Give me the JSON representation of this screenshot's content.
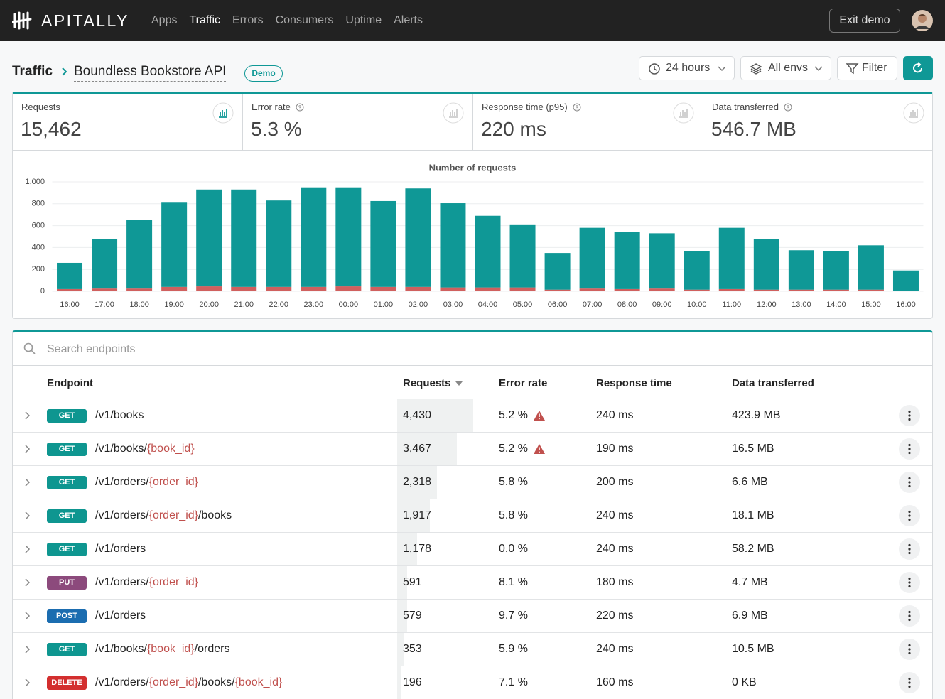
{
  "nav": {
    "logo": "APITALLY",
    "items": [
      {
        "label": "Apps"
      },
      {
        "label": "Traffic",
        "active": true
      },
      {
        "label": "Errors"
      },
      {
        "label": "Consumers"
      },
      {
        "label": "Uptime"
      },
      {
        "label": "Alerts"
      }
    ],
    "exit_button": "Exit demo"
  },
  "breadcrumb": {
    "section": "Traffic",
    "app": "Boundless Bookstore API",
    "badge": "Demo"
  },
  "controls": {
    "period": "24 hours",
    "envs": "All envs",
    "filter": "Filter"
  },
  "stats": [
    {
      "label": "Requests",
      "value": "15,462",
      "info": false,
      "active": true
    },
    {
      "label": "Error rate",
      "value": "5.3 %",
      "info": true,
      "active": false
    },
    {
      "label": "Response time (p95)",
      "value": "220 ms",
      "info": true,
      "active": false
    },
    {
      "label": "Data transferred",
      "value": "546.7 MB",
      "info": true,
      "active": false
    }
  ],
  "chart_data": {
    "type": "bar",
    "stacked": true,
    "title": "Number of requests",
    "categories": [
      "16:00",
      "17:00",
      "18:00",
      "19:00",
      "20:00",
      "21:00",
      "22:00",
      "23:00",
      "00:00",
      "01:00",
      "02:00",
      "03:00",
      "04:00",
      "05:00",
      "06:00",
      "07:00",
      "08:00",
      "09:00",
      "10:00",
      "11:00",
      "12:00",
      "13:00",
      "14:00",
      "15:00",
      "16:00"
    ],
    "series": [
      {
        "color": "#d0605e",
        "values": [
          20,
          25,
          25,
          40,
          45,
          40,
          40,
          40,
          45,
          40,
          40,
          35,
          35,
          35,
          15,
          25,
          20,
          25,
          15,
          20,
          15,
          15,
          15,
          15,
          5
        ]
      },
      {
        "color": "#0f9896",
        "values": [
          240,
          455,
          625,
          770,
          885,
          890,
          790,
          910,
          905,
          785,
          900,
          770,
          655,
          570,
          335,
          555,
          525,
          505,
          355,
          560,
          465,
          360,
          355,
          405,
          185
        ]
      }
    ],
    "ylim": [
      0,
      1000
    ],
    "yticks": [
      0,
      200,
      400,
      600,
      800,
      {
        "value": 1000,
        "label": "1,000"
      }
    ],
    "grid": true
  },
  "table": {
    "search_placeholder": "Search endpoints",
    "columns": [
      "Endpoint",
      "Requests",
      "Error rate",
      "Response time",
      "Data transferred"
    ],
    "sort_column": 1,
    "method_colors": {
      "GET": "#0e9690",
      "PUT": "#8c4a7c",
      "POST": "#1b6db0",
      "DELETE": "#d32f2f"
    },
    "rows": [
      {
        "method": "GET",
        "path": [
          {
            "text": "/v1/books"
          }
        ],
        "requests": {
          "value": 4430,
          "label": "4,430"
        },
        "error_rate": "5.2 %",
        "warning": true,
        "response_time": "240 ms",
        "data_transferred": "423.9 MB"
      },
      {
        "method": "GET",
        "path": [
          {
            "text": "/v1/books/"
          },
          {
            "text": "{book_id}",
            "param": true
          }
        ],
        "requests": {
          "value": 3467,
          "label": "3,467"
        },
        "error_rate": "5.2 %",
        "warning": true,
        "response_time": "190 ms",
        "data_transferred": "16.5 MB"
      },
      {
        "method": "GET",
        "path": [
          {
            "text": "/v1/orders/"
          },
          {
            "text": "{order_id}",
            "param": true
          }
        ],
        "requests": {
          "value": 2318,
          "label": "2,318"
        },
        "error_rate": "5.8 %",
        "warning": false,
        "response_time": "200 ms",
        "data_transferred": "6.6 MB"
      },
      {
        "method": "GET",
        "path": [
          {
            "text": "/v1/orders/"
          },
          {
            "text": "{order_id}",
            "param": true
          },
          {
            "text": "/books"
          }
        ],
        "requests": {
          "value": 1917,
          "label": "1,917"
        },
        "error_rate": "5.8 %",
        "warning": false,
        "response_time": "240 ms",
        "data_transferred": "18.1 MB"
      },
      {
        "method": "GET",
        "path": [
          {
            "text": "/v1/orders"
          }
        ],
        "requests": {
          "value": 1178,
          "label": "1,178"
        },
        "error_rate": "0.0 %",
        "warning": false,
        "response_time": "240 ms",
        "data_transferred": "58.2 MB"
      },
      {
        "method": "PUT",
        "path": [
          {
            "text": "/v1/orders/"
          },
          {
            "text": "{order_id}",
            "param": true
          }
        ],
        "requests": 591,
        "error_rate": "8.1 %",
        "warning": false,
        "response_time": "180 ms",
        "data_transferred": "4.7 MB"
      },
      {
        "method": "POST",
        "path": [
          {
            "text": "/v1/orders"
          }
        ],
        "requests": 579,
        "error_rate": "9.7 %",
        "warning": false,
        "response_time": "220 ms",
        "data_transferred": "6.9 MB"
      },
      {
        "method": "GET",
        "path": [
          {
            "text": "/v1/books/"
          },
          {
            "text": "{book_id}",
            "param": true
          },
          {
            "text": "/orders"
          }
        ],
        "requests": 353,
        "error_rate": "5.9 %",
        "warning": false,
        "response_time": "240 ms",
        "data_transferred": "10.5 MB"
      },
      {
        "method": "DELETE",
        "path": [
          {
            "text": "/v1/orders/"
          },
          {
            "text": "{order_id}",
            "param": true
          },
          {
            "text": "/books/"
          },
          {
            "text": "{book_id}",
            "param": true
          }
        ],
        "requests": 196,
        "error_rate": "7.1 %",
        "warning": false,
        "response_time": "160 ms",
        "data_transferred": "0 KB"
      }
    ]
  }
}
